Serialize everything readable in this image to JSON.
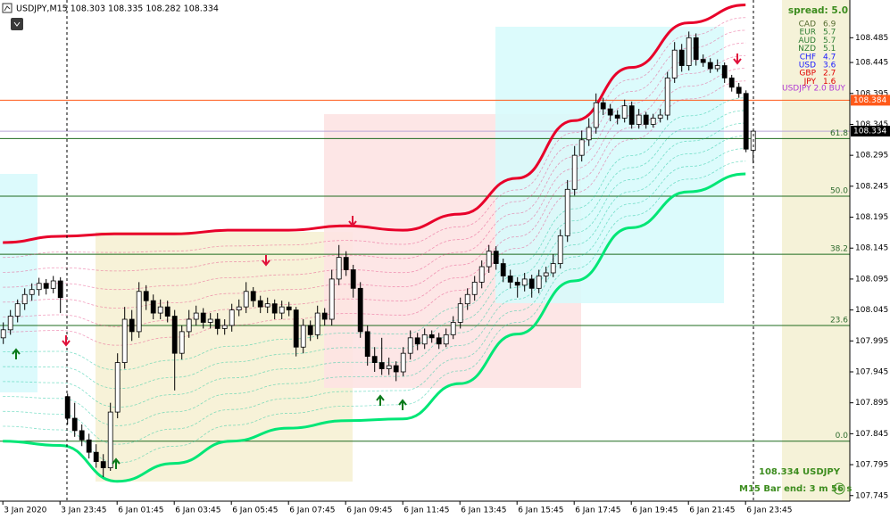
{
  "chart_data": {
    "type": "candlestick",
    "symbol_info": "USDJPY,M15  108.303 108.335 108.282 108.334",
    "ylim": [
      107.736,
      108.546
    ],
    "yticks": [
      107.745,
      107.795,
      107.845,
      107.895,
      107.945,
      107.995,
      108.045,
      108.095,
      108.145,
      108.195,
      108.245,
      108.295,
      108.345,
      108.395,
      108.445,
      108.485
    ],
    "xlim": [
      -0.4,
      118.6
    ],
    "xticks": [
      {
        "value": 0,
        "label": "3 Jan 2020"
      },
      {
        "value": 8,
        "label": "3 Jan 23:45"
      },
      {
        "value": 16,
        "label": "6 Jan 01:45"
      },
      {
        "value": 24,
        "label": "6 Jan 03:45"
      },
      {
        "value": 32,
        "label": "6 Jan 05:45"
      },
      {
        "value": 40,
        "label": "6 Jan 07:45"
      },
      {
        "value": 48,
        "label": "6 Jan 09:45"
      },
      {
        "value": 56,
        "label": "6 Jan 11:45"
      },
      {
        "value": 64,
        "label": "6 Jan 13:45"
      },
      {
        "value": 72,
        "label": "6 Jan 15:45"
      },
      {
        "value": 80,
        "label": "6 Jan 17:45"
      },
      {
        "value": 88,
        "label": "6 Jan 19:45"
      },
      {
        "value": 96,
        "label": "6 Jan 21:45"
      },
      {
        "value": 104,
        "label": "6 Jan 23:45"
      }
    ],
    "ohlc": [
      [
        108.0,
        108.025,
        107.99,
        108.013
      ],
      [
        108.013,
        108.045,
        108.005,
        108.035
      ],
      [
        108.035,
        108.062,
        108.025,
        108.055
      ],
      [
        108.055,
        108.08,
        108.045,
        108.07
      ],
      [
        108.07,
        108.088,
        108.06,
        108.078
      ],
      [
        108.078,
        108.097,
        108.068,
        108.088
      ],
      [
        108.088,
        108.095,
        108.07,
        108.08
      ],
      [
        108.08,
        108.1,
        108.072,
        108.092
      ],
      [
        108.092,
        108.098,
        108.04,
        108.065
      ],
      [
        107.905,
        107.91,
        107.86,
        107.87
      ],
      [
        107.87,
        107.895,
        107.84,
        107.85
      ],
      [
        107.85,
        107.86,
        107.825,
        107.835
      ],
      [
        107.835,
        107.845,
        107.805,
        107.815
      ],
      [
        107.815,
        107.828,
        107.79,
        107.8
      ],
      [
        107.8,
        107.812,
        107.775,
        107.79
      ],
      [
        107.79,
        107.895,
        107.785,
        107.88
      ],
      [
        107.88,
        107.975,
        107.87,
        107.96
      ],
      [
        107.96,
        108.05,
        107.95,
        108.03
      ],
      [
        108.03,
        108.045,
        107.995,
        108.01
      ],
      [
        108.01,
        108.09,
        108.0,
        108.075
      ],
      [
        108.075,
        108.085,
        108.045,
        108.06
      ],
      [
        108.06,
        108.07,
        108.03,
        108.04
      ],
      [
        108.04,
        108.062,
        108.03,
        108.05
      ],
      [
        108.05,
        108.06,
        108.025,
        108.035
      ],
      [
        108.035,
        108.045,
        107.915,
        107.975
      ],
      [
        107.975,
        108.02,
        107.965,
        108.01
      ],
      [
        108.01,
        108.045,
        108.0,
        108.03
      ],
      [
        108.03,
        108.052,
        108.02,
        108.04
      ],
      [
        108.04,
        108.048,
        108.015,
        108.025
      ],
      [
        108.025,
        108.04,
        108.015,
        108.03
      ],
      [
        108.03,
        108.04,
        108.005,
        108.015
      ],
      [
        108.015,
        108.03,
        108.005,
        108.02
      ],
      [
        108.02,
        108.055,
        108.01,
        108.045
      ],
      [
        108.045,
        108.062,
        108.035,
        108.05
      ],
      [
        108.05,
        108.09,
        108.04,
        108.075
      ],
      [
        108.075,
        108.082,
        108.05,
        108.06
      ],
      [
        108.06,
        108.068,
        108.04,
        108.05
      ],
      [
        108.05,
        108.065,
        108.04,
        108.055
      ],
      [
        108.055,
        108.062,
        108.03,
        108.04
      ],
      [
        108.04,
        108.06,
        108.03,
        108.05
      ],
      [
        108.05,
        108.058,
        108.035,
        108.045
      ],
      [
        108.045,
        108.05,
        107.97,
        107.985
      ],
      [
        107.985,
        108.03,
        107.975,
        108.02
      ],
      [
        108.02,
        108.028,
        107.995,
        108.005
      ],
      [
        108.005,
        108.052,
        107.998,
        108.04
      ],
      [
        108.04,
        108.048,
        108.02,
        108.03
      ],
      [
        108.03,
        108.11,
        108.02,
        108.095
      ],
      [
        108.095,
        108.15,
        108.085,
        108.13
      ],
      [
        108.13,
        108.14,
        108.1,
        108.11
      ],
      [
        108.11,
        108.118,
        108.065,
        108.08
      ],
      [
        108.08,
        108.09,
        108.0,
        108.01
      ],
      [
        108.01,
        108.02,
        107.955,
        107.97
      ],
      [
        107.97,
        107.985,
        107.945,
        107.96
      ],
      [
        107.96,
        108.0,
        107.94,
        107.95
      ],
      [
        107.95,
        107.968,
        107.94,
        107.955
      ],
      [
        107.955,
        107.962,
        107.93,
        107.945
      ],
      [
        107.945,
        107.985,
        107.938,
        107.975
      ],
      [
        107.975,
        108.012,
        107.965,
        108.0
      ],
      [
        108.0,
        108.008,
        107.98,
        107.99
      ],
      [
        107.99,
        108.015,
        107.982,
        108.005
      ],
      [
        108.005,
        108.012,
        107.992,
        108.0
      ],
      [
        108.0,
        108.008,
        107.982,
        107.99
      ],
      [
        107.99,
        108.015,
        107.985,
        108.005
      ],
      [
        108.005,
        108.035,
        107.998,
        108.025
      ],
      [
        108.025,
        108.065,
        108.015,
        108.055
      ],
      [
        108.055,
        108.08,
        108.045,
        108.07
      ],
      [
        108.07,
        108.1,
        108.06,
        108.09
      ],
      [
        108.09,
        108.125,
        108.08,
        108.115
      ],
      [
        108.115,
        108.15,
        108.105,
        108.14
      ],
      [
        108.14,
        108.148,
        108.11,
        108.12
      ],
      [
        108.12,
        108.128,
        108.09,
        108.1
      ],
      [
        108.1,
        108.11,
        108.08,
        108.09
      ],
      [
        108.09,
        108.098,
        108.065,
        108.085
      ],
      [
        108.085,
        108.105,
        108.075,
        108.095
      ],
      [
        108.095,
        108.102,
        108.065,
        108.08
      ],
      [
        108.08,
        108.11,
        108.072,
        108.1
      ],
      [
        108.1,
        108.115,
        108.09,
        108.105
      ],
      [
        108.105,
        108.135,
        108.098,
        108.12
      ],
      [
        108.12,
        108.175,
        108.112,
        108.165
      ],
      [
        108.165,
        108.255,
        108.155,
        108.24
      ],
      [
        108.24,
        108.31,
        108.23,
        108.295
      ],
      [
        108.295,
        108.335,
        108.285,
        108.32
      ],
      [
        108.32,
        108.355,
        108.31,
        108.34
      ],
      [
        108.34,
        108.395,
        108.33,
        108.38
      ],
      [
        108.38,
        108.388,
        108.36,
        108.37
      ],
      [
        108.37,
        108.378,
        108.35,
        108.36
      ],
      [
        108.36,
        108.368,
        108.345,
        108.355
      ],
      [
        108.355,
        108.385,
        108.348,
        108.375
      ],
      [
        108.375,
        108.382,
        108.338,
        108.345
      ],
      [
        108.345,
        108.37,
        108.338,
        108.36
      ],
      [
        108.36,
        108.365,
        108.338,
        108.345
      ],
      [
        108.345,
        108.362,
        108.34,
        108.355
      ],
      [
        108.355,
        108.37,
        108.348,
        108.36
      ],
      [
        108.36,
        108.43,
        108.352,
        108.42
      ],
      [
        108.42,
        108.478,
        108.412,
        108.465
      ],
      [
        108.465,
        108.475,
        108.43,
        108.44
      ],
      [
        108.44,
        108.495,
        108.432,
        108.485
      ],
      [
        108.485,
        108.492,
        108.44,
        108.45
      ],
      [
        108.45,
        108.458,
        108.438,
        108.445
      ],
      [
        108.445,
        108.452,
        108.428,
        108.435
      ],
      [
        108.435,
        108.45,
        108.43,
        108.44
      ],
      [
        108.44,
        108.445,
        108.412,
        108.42
      ],
      [
        108.42,
        108.425,
        108.398,
        108.405
      ],
      [
        108.405,
        108.412,
        108.388,
        108.395
      ],
      [
        108.395,
        108.4,
        108.3,
        108.305
      ],
      [
        108.303,
        108.335,
        108.282,
        108.334
      ]
    ],
    "bands": [
      {
        "color": "#e8002a",
        "x": [
          0,
          8,
          16,
          24,
          32,
          40,
          48,
          56,
          64,
          72,
          80,
          88,
          96,
          104
        ],
        "values": [
          108.154,
          108.164,
          108.168,
          108.168,
          108.174,
          108.174,
          108.181,
          108.174,
          108.2,
          108.258,
          108.351,
          108.437,
          108.509,
          108.538
        ]
      },
      {
        "color": "#00e676",
        "x": [
          0,
          8,
          16,
          24,
          32,
          40,
          48,
          56,
          64,
          72,
          80,
          88,
          96,
          104
        ],
        "values": [
          107.833,
          107.826,
          107.768,
          107.797,
          107.833,
          107.854,
          107.866,
          107.869,
          107.926,
          108.006,
          108.092,
          108.178,
          108.236,
          108.265
        ]
      }
    ],
    "price_lines": [
      {
        "value": 108.384,
        "color": "#ff5a1a"
      },
      {
        "value": 108.334,
        "color": "#000000"
      }
    ],
    "fib_levels": [
      {
        "label": "61.8",
        "price": 108.322
      },
      {
        "label": "50.0",
        "price": 108.229
      },
      {
        "label": "38.2",
        "price": 108.135
      },
      {
        "label": "23.6",
        "price": 108.02
      },
      {
        "label": "0.0",
        "price": 107.833
      }
    ],
    "spread": "spread: 5.0",
    "strength": [
      {
        "name": "CAD",
        "value": "6.9",
        "color": "#556b2f"
      },
      {
        "name": "EUR",
        "value": "5.7",
        "color": "#2e7d32"
      },
      {
        "name": "AUD",
        "value": "5.7",
        "color": "#2e7d32"
      },
      {
        "name": "NZD",
        "value": "5.1",
        "color": "#2e7d32"
      },
      {
        "name": "CHF",
        "value": "4.7",
        "color": "#1a1aff"
      },
      {
        "name": "USD",
        "value": "3.6",
        "color": "#1a1aff"
      },
      {
        "name": "GBP",
        "value": "2.7",
        "color": "#e00000"
      },
      {
        "name": "JPY",
        "value": "1.6",
        "color": "#e00000"
      }
    ],
    "signal": "USDJPY 2.0 BUY",
    "footer_price": "108.334  USDJPY",
    "bar_end": "M15 Bar end: 3 m 56 s"
  }
}
